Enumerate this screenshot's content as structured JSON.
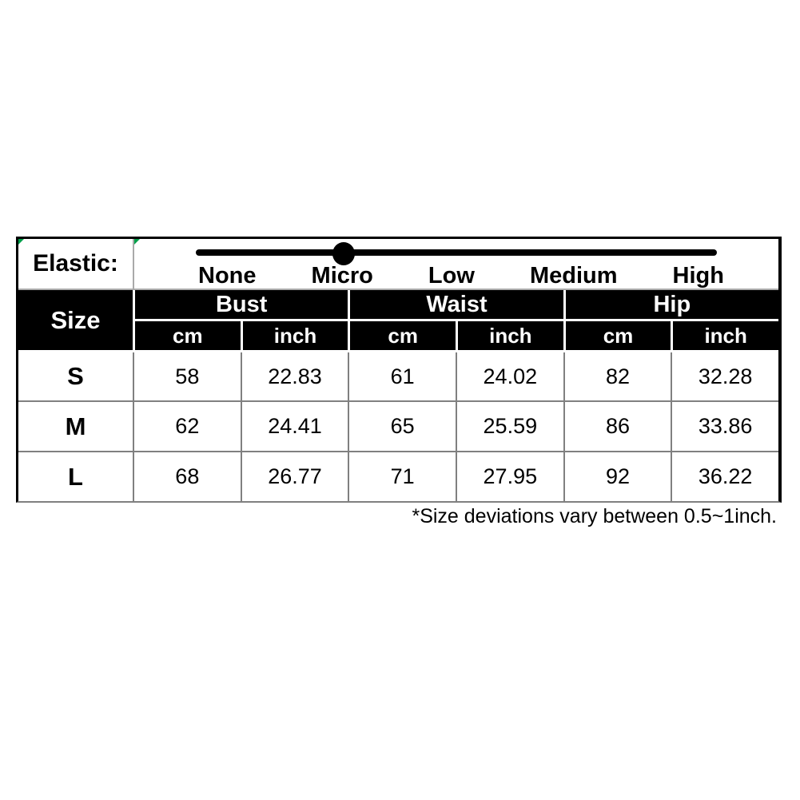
{
  "colors": {
    "header_bg": "#000000",
    "header_text": "#ffffff",
    "grid_line": "#808080",
    "light_divider": "#aaaaaa",
    "outer_border": "#000000",
    "slider_color": "#000000",
    "comment_marker_green": "#00a04a",
    "background": "#ffffff"
  },
  "elastic": {
    "label": "Elastic:",
    "levels": [
      "None",
      "Micro",
      "Low",
      "Medium",
      "High"
    ],
    "selected": "Micro",
    "selected_position_pct": 28
  },
  "table": {
    "size_header": "Size",
    "groups": [
      "Bust",
      "Waist",
      "Hip"
    ],
    "unit_headers": [
      "cm",
      "inch"
    ],
    "rows": [
      {
        "size": "S",
        "values": [
          "58",
          "22.83",
          "61",
          "24.02",
          "82",
          "32.28"
        ]
      },
      {
        "size": "M",
        "values": [
          "62",
          "24.41",
          "65",
          "25.59",
          "86",
          "33.86"
        ]
      },
      {
        "size": "L",
        "values": [
          "68",
          "26.77",
          "71",
          "27.95",
          "92",
          "36.22"
        ]
      }
    ]
  },
  "footnote": "*Size deviations vary between 0.5~1inch.",
  "chart_data": {
    "type": "table",
    "title": "Garment size chart with elastic level indicator",
    "elastic_scale": [
      "None",
      "Micro",
      "Low",
      "Medium",
      "High"
    ],
    "elastic_selected": "Micro",
    "columns": [
      "Size",
      "Bust cm",
      "Bust inch",
      "Waist cm",
      "Waist inch",
      "Hip cm",
      "Hip inch"
    ],
    "rows": [
      [
        "S",
        58,
        22.83,
        61,
        24.02,
        82,
        32.28
      ],
      [
        "M",
        62,
        24.41,
        65,
        25.59,
        86,
        33.86
      ],
      [
        "L",
        68,
        26.77,
        71,
        27.95,
        92,
        36.22
      ]
    ],
    "footnote": "*Size deviations vary between 0.5~1inch."
  }
}
